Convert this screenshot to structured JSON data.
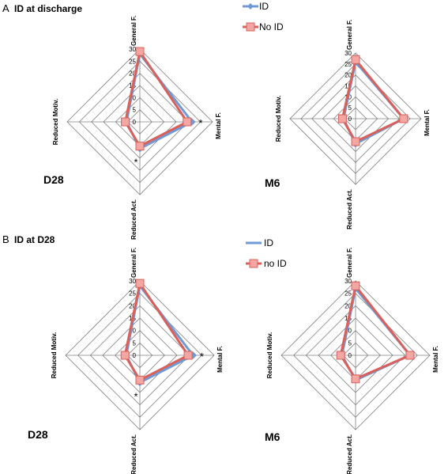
{
  "panels": [
    {
      "letter": "A",
      "title": "ID at discharge"
    },
    {
      "letter": "B",
      "title": "ID at D28"
    }
  ],
  "colors": {
    "series_id": "#6f9ad4",
    "series_noid": "#d9605b",
    "marker_fill_noid": "#f4a6a2",
    "grid": "#808080"
  },
  "chart_data": [
    {
      "type": "radar",
      "panel": "A",
      "label": "D28",
      "axes": [
        "General F.",
        "Mental F.",
        "Reduced Act.",
        "Reduced Motiv."
      ],
      "ticks": [
        "0",
        "5",
        "10",
        "15",
        "20",
        "25",
        "30"
      ],
      "rmax": 30,
      "series": [
        {
          "name": "ID",
          "values": [
            28,
            21.5,
            11,
            5.5
          ]
        },
        {
          "name": "No ID",
          "values": [
            29,
            19.5,
            10,
            6
          ]
        }
      ],
      "annotations": [
        {
          "text": "*",
          "axis": "Mental F."
        },
        {
          "text": "*",
          "axis": "Reduced Act."
        }
      ]
    },
    {
      "type": "radar",
      "panel": "A",
      "label": "M6",
      "axes": [
        "General F.",
        "Mental F.",
        "Reduced Act.",
        "Reduced Motiv."
      ],
      "ticks": [
        "0",
        "5",
        "10",
        "15",
        "20",
        "25",
        "30"
      ],
      "rmax": 30,
      "series": [
        {
          "name": "ID",
          "values": [
            26,
            22,
            11.5,
            5.5
          ]
        },
        {
          "name": "No ID",
          "values": [
            27,
            22,
            10.5,
            6
          ]
        }
      ],
      "annotations": []
    },
    {
      "type": "radar",
      "panel": "B",
      "label": "D28",
      "axes": [
        "General F.",
        "Mental F.",
        "Reduced Act.",
        "Reduced Motiv."
      ],
      "ticks": [
        "0",
        "5",
        "10",
        "15",
        "20",
        "25",
        "30"
      ],
      "rmax": 30,
      "series": [
        {
          "name": "ID",
          "values": [
            28,
            21.5,
            11,
            5.5
          ]
        },
        {
          "name": "no ID",
          "values": [
            29,
            19.5,
            10,
            6
          ]
        }
      ],
      "annotations": [
        {
          "text": "*",
          "axis": "Mental F."
        },
        {
          "text": "*",
          "axis": "Reduced Act."
        }
      ]
    },
    {
      "type": "radar",
      "panel": "B",
      "label": "M6",
      "axes": [
        "General F.",
        "Mental F.",
        "Reduced Act.",
        "Reduced Motiv."
      ],
      "ticks": [
        "0",
        "5",
        "10",
        "15",
        "20",
        "25",
        "30"
      ],
      "rmax": 30,
      "series": [
        {
          "name": "ID",
          "values": [
            27,
            22,
            10,
            5.5
          ]
        },
        {
          "name": "no ID",
          "values": [
            28,
            22,
            9.5,
            6
          ]
        }
      ],
      "annotations": []
    }
  ]
}
